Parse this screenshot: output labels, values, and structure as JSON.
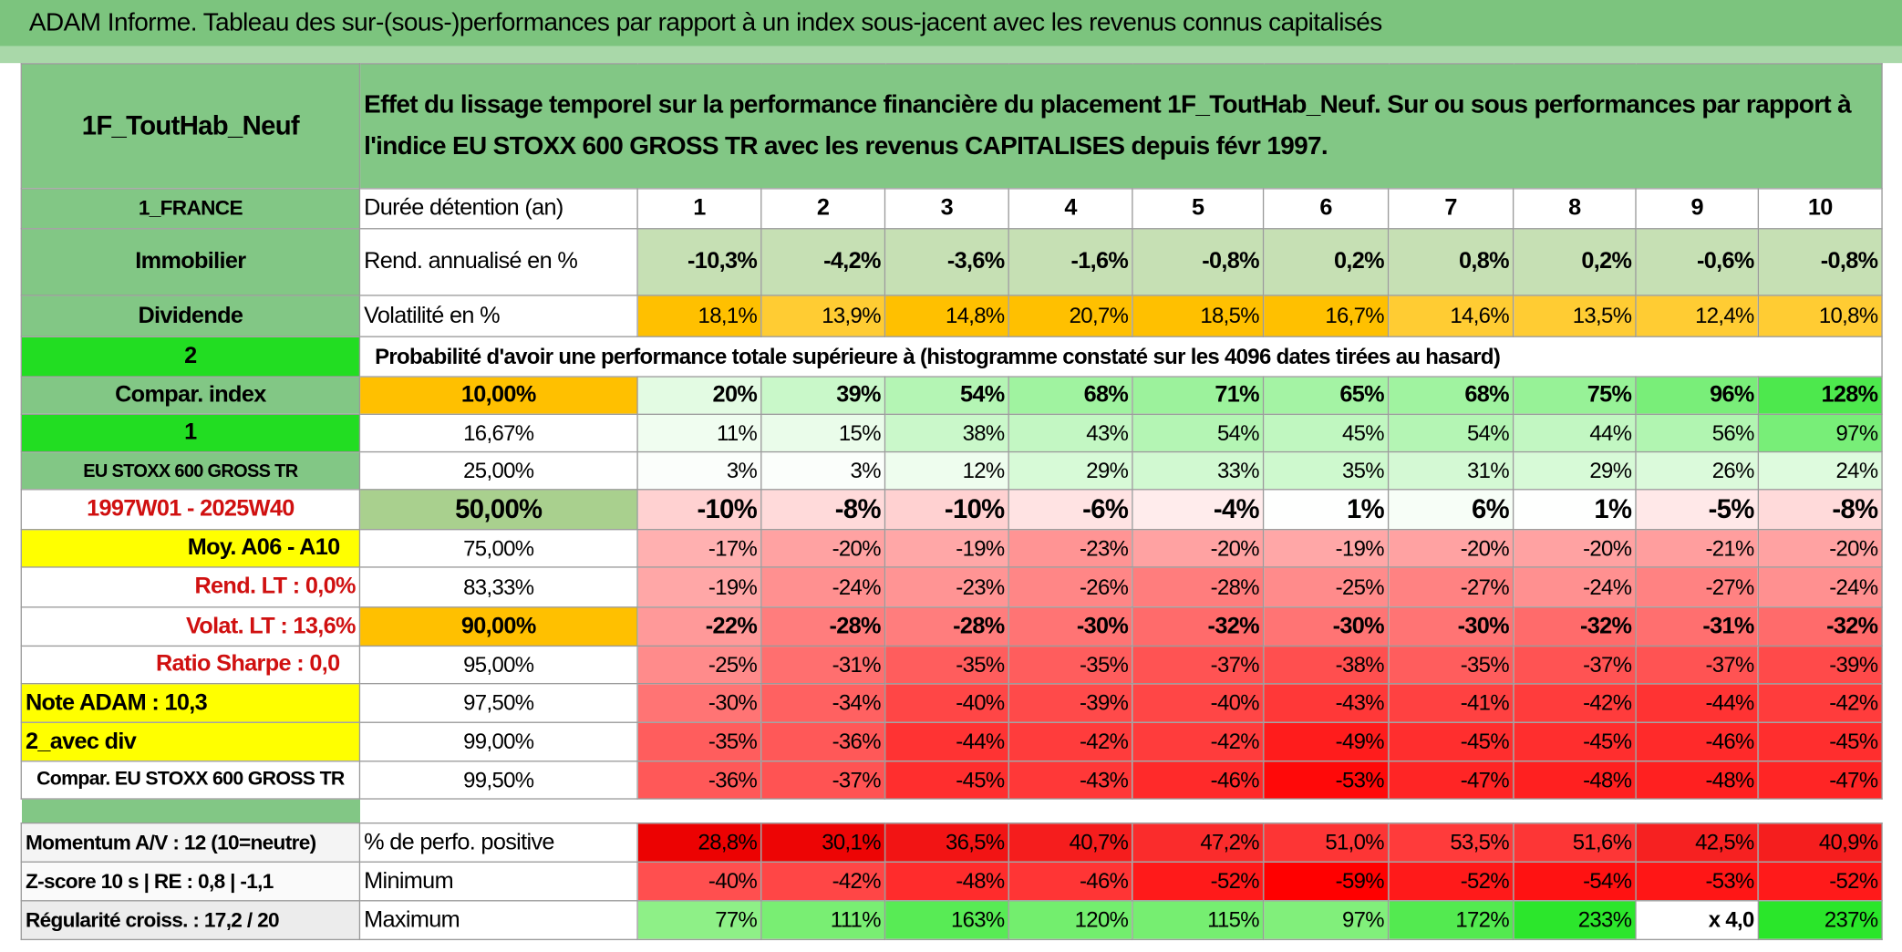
{
  "title": "ADAM Informe. Tableau des sur-(sous-)performances par rapport à un index sous-jacent avec les revenus connus capitalisés",
  "header": {
    "left": "1F_ToutHab_Neuf",
    "text": "Effet du lissage temporel sur la performance financière du placement 1F_ToutHab_Neuf. Sur ou sous performances par rapport à l'indice EU STOXX 600 GROSS TR avec les revenus CAPITALISES depuis févr 1997."
  },
  "rows": [
    {
      "left": "1_FRANCE",
      "label": "Durée détention (an)",
      "cells": [
        "1",
        "2",
        "3",
        "4",
        "5",
        "6",
        "7",
        "8",
        "9",
        "10"
      ]
    },
    {
      "left": "Immobilier",
      "label": "Rend. annualisé en %",
      "cells": [
        "-10,3%",
        "-4,2%",
        "-3,6%",
        "-1,6%",
        "-0,8%",
        "0,2%",
        "0,8%",
        "0,2%",
        "-0,6%",
        "-0,8%"
      ]
    },
    {
      "left": "Dividende",
      "label": "Volatilité en %",
      "cells": [
        "18,1%",
        "13,9%",
        "14,8%",
        "20,7%",
        "18,5%",
        "16,7%",
        "14,6%",
        "13,5%",
        "12,4%",
        "10,8%"
      ]
    },
    {
      "left": "2",
      "label": "Probabilité d'avoir une performance totale supérieure à (histogramme constaté sur les 4096 dates tirées au hasard)"
    },
    {
      "left": "Compar. index",
      "label": "10,00%",
      "cells": [
        "20%",
        "39%",
        "54%",
        "68%",
        "71%",
        "65%",
        "68%",
        "75%",
        "96%",
        "128%"
      ]
    },
    {
      "left": "1",
      "label": "16,67%",
      "cells": [
        "11%",
        "15%",
        "38%",
        "43%",
        "54%",
        "45%",
        "54%",
        "44%",
        "56%",
        "97%"
      ]
    },
    {
      "left": "EU STOXX 600 GROSS TR",
      "label": "25,00%",
      "cells": [
        "3%",
        "3%",
        "12%",
        "29%",
        "33%",
        "35%",
        "31%",
        "29%",
        "26%",
        "24%"
      ]
    },
    {
      "left": "1997W01 - 2025W40",
      "label": "50,00%",
      "cells": [
        "-10%",
        "-8%",
        "-10%",
        "-6%",
        "-4%",
        "1%",
        "6%",
        "1%",
        "-5%",
        "-8%"
      ]
    },
    {
      "left": "Moy. A06 - A10",
      "label": "75,00%",
      "cells": [
        "-17%",
        "-20%",
        "-19%",
        "-23%",
        "-20%",
        "-19%",
        "-20%",
        "-20%",
        "-21%",
        "-20%"
      ]
    },
    {
      "left": "Rend. LT :   0,0%",
      "label": "83,33%",
      "cells": [
        "-19%",
        "-24%",
        "-23%",
        "-26%",
        "-28%",
        "-25%",
        "-27%",
        "-24%",
        "-27%",
        "-24%"
      ]
    },
    {
      "left": "Volat. LT :   13,6%",
      "label": "90,00%",
      "cells": [
        "-22%",
        "-28%",
        "-28%",
        "-30%",
        "-32%",
        "-30%",
        "-30%",
        "-32%",
        "-31%",
        "-32%"
      ]
    },
    {
      "left": "Ratio Sharpe :    0,0",
      "label": "95,00%",
      "cells": [
        "-25%",
        "-31%",
        "-35%",
        "-35%",
        "-37%",
        "-38%",
        "-35%",
        "-37%",
        "-37%",
        "-39%"
      ]
    },
    {
      "left": "Note ADAM : 10,3",
      "label": "97,50%",
      "cells": [
        "-30%",
        "-34%",
        "-40%",
        "-39%",
        "-40%",
        "-43%",
        "-41%",
        "-42%",
        "-44%",
        "-42%"
      ]
    },
    {
      "left": "2_avec div",
      "label": "99,00%",
      "cells": [
        "-35%",
        "-36%",
        "-44%",
        "-42%",
        "-42%",
        "-49%",
        "-45%",
        "-45%",
        "-46%",
        "-45%"
      ]
    },
    {
      "left": "Compar. EU STOXX 600 GROSS TR",
      "label": "99,50%",
      "cells": [
        "-36%",
        "-37%",
        "-45%",
        "-43%",
        "-46%",
        "-53%",
        "-47%",
        "-48%",
        "-48%",
        "-47%"
      ]
    }
  ],
  "bottom_rows": [
    {
      "left": "Momentum A/V : 12 (10=neutre)",
      "label": "% de perfo. positive",
      "cells": [
        "28,8%",
        "30,1%",
        "36,5%",
        "40,7%",
        "47,2%",
        "51,0%",
        "53,5%",
        "51,6%",
        "42,5%",
        "40,9%"
      ]
    },
    {
      "left": "Z-score 10 s | RE : 0,8 | -1,1",
      "label": "Minimum",
      "cells": [
        "-40%",
        "-42%",
        "-48%",
        "-46%",
        "-52%",
        "-59%",
        "-52%",
        "-54%",
        "-53%",
        "-52%"
      ]
    },
    {
      "left": "Régularité croiss. : 17,2 / 20",
      "label": "Maximum",
      "cells": [
        "77%",
        "111%",
        "163%",
        "120%",
        "115%",
        "97%",
        "172%",
        "233%",
        "x 4,0",
        "237%"
      ]
    }
  ]
}
